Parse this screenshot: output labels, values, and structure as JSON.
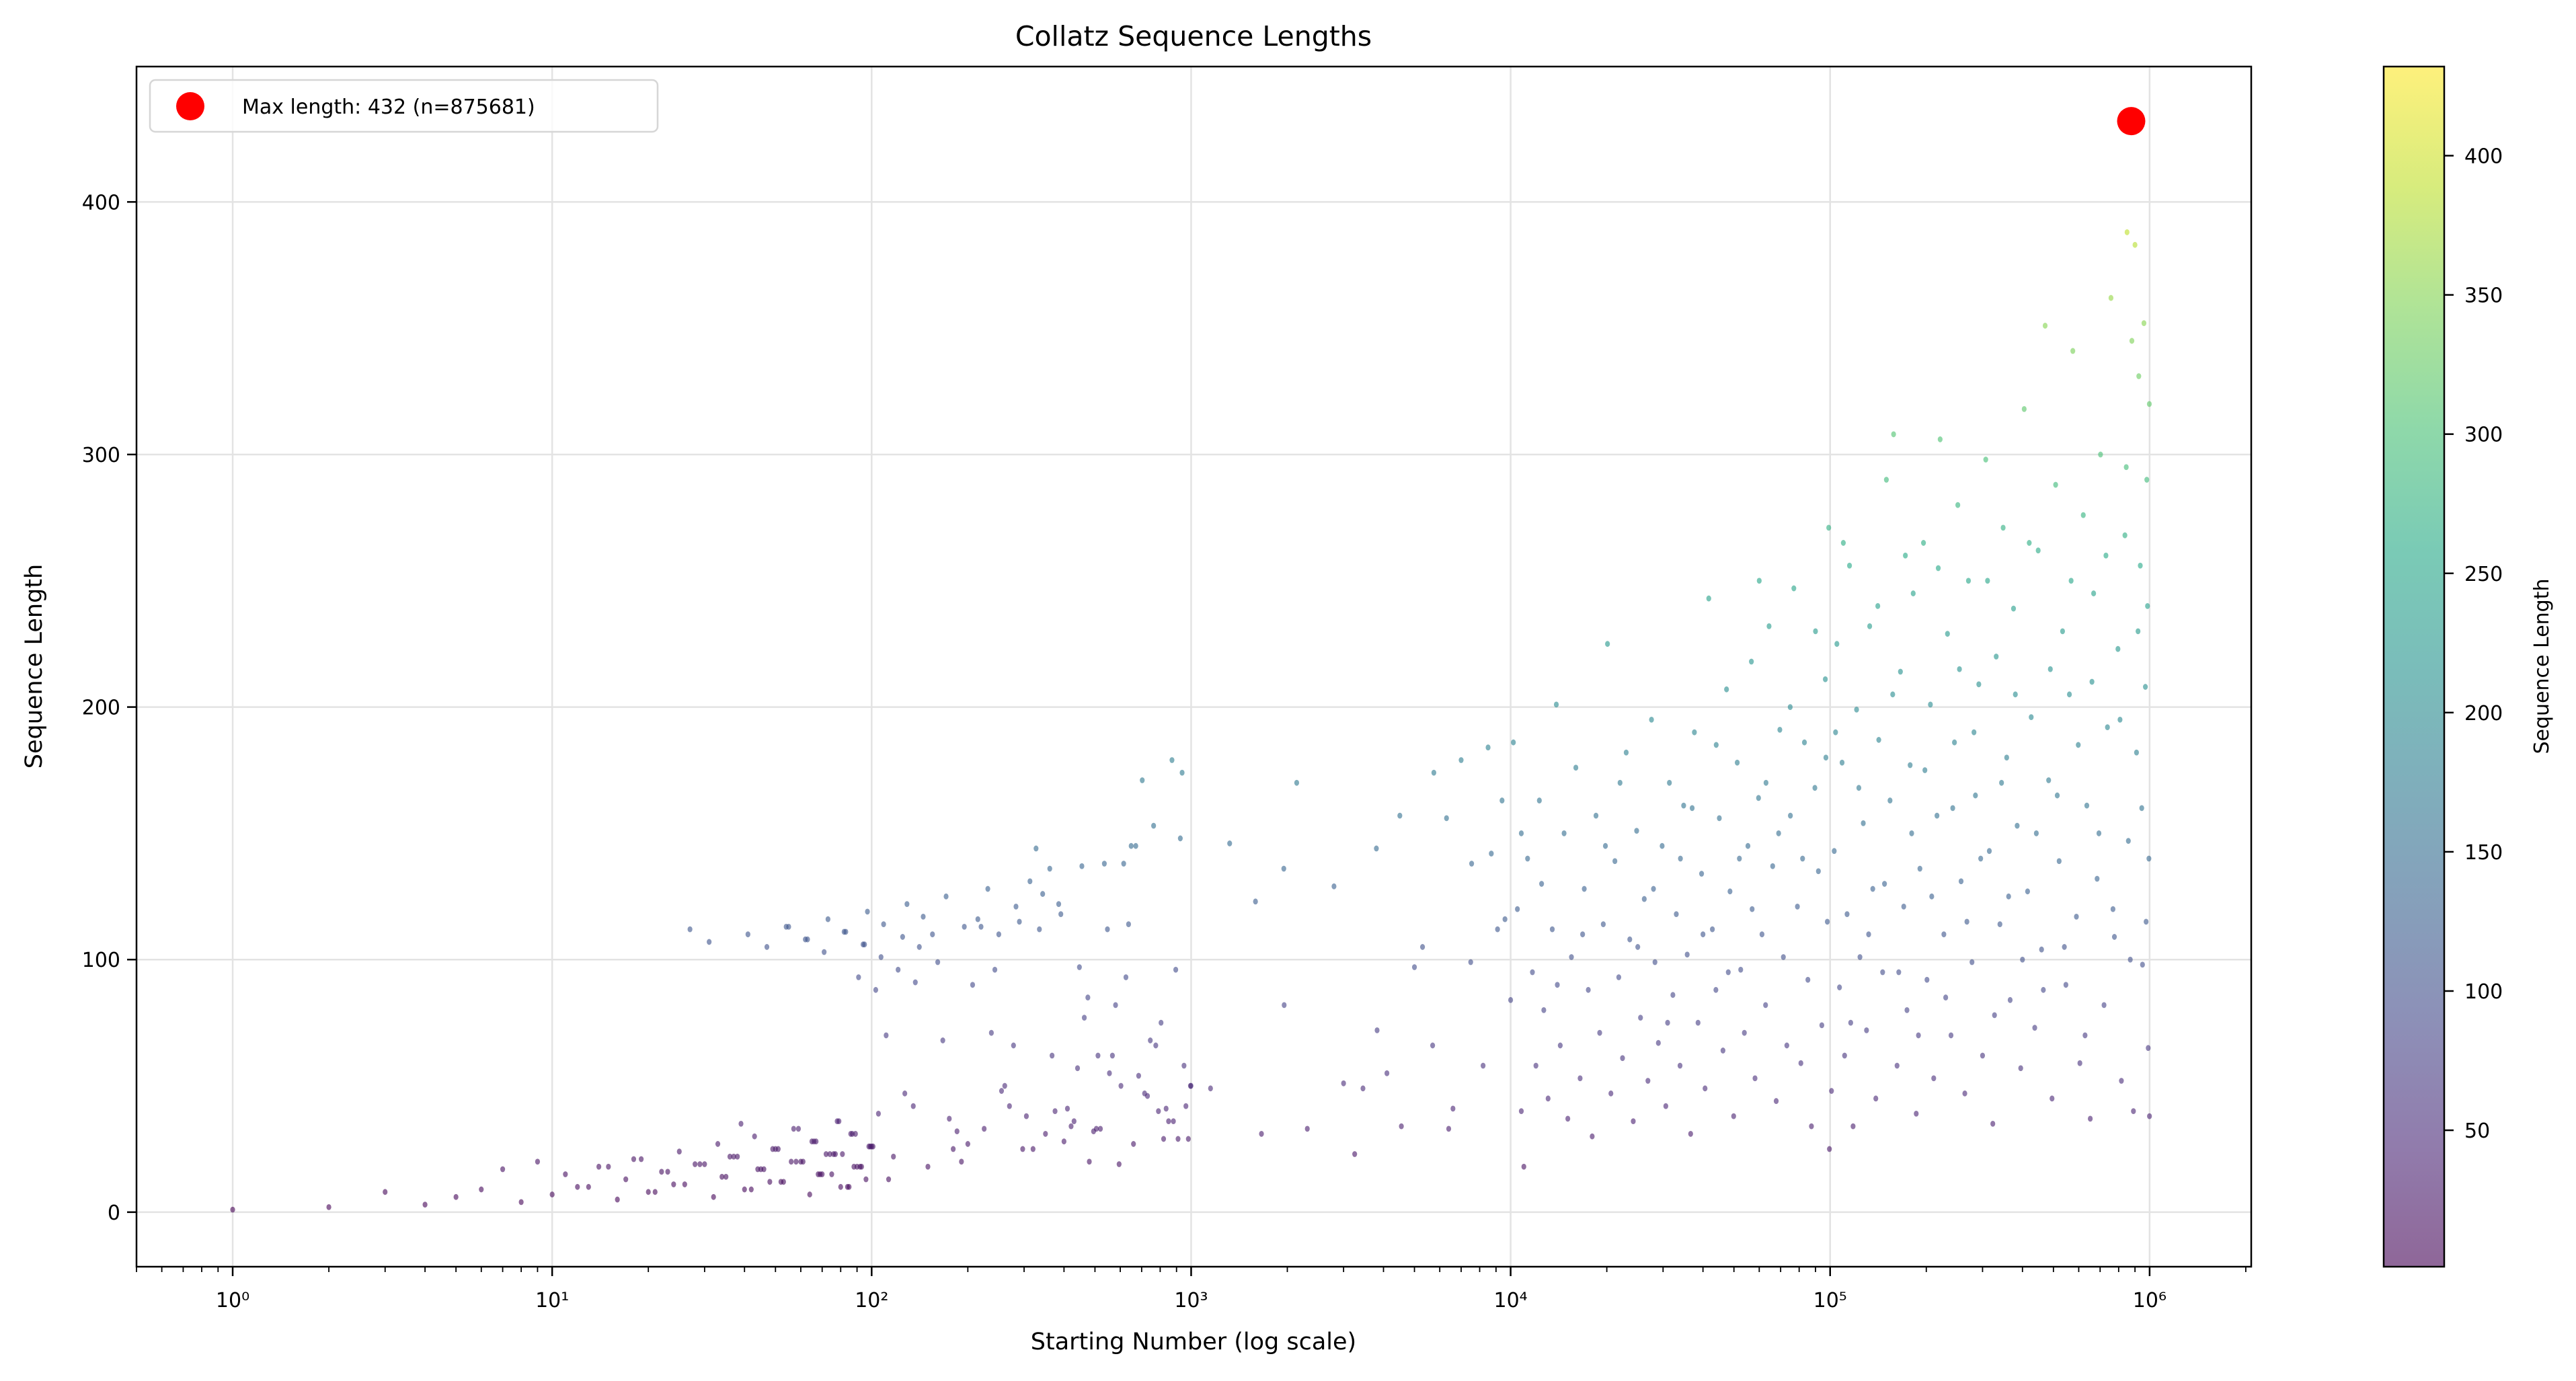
{
  "chart_data": {
    "type": "scatter",
    "title": "Collatz Sequence Lengths",
    "xlabel": "Starting Number (log scale)",
    "ylabel": "Sequence Length",
    "x_scale": "log",
    "xlim": [
      0.5,
      2080000.0
    ],
    "ylim": [
      -21.6,
      453.6
    ],
    "x_ticks": [
      1,
      10,
      100,
      1000,
      10000,
      100000,
      1000000
    ],
    "x_tick_labels": [
      "10⁰",
      "10¹",
      "10²",
      "10³",
      "10⁴",
      "10⁵",
      "10⁶"
    ],
    "y_ticks": [
      0,
      100,
      200,
      300,
      400
    ],
    "y_tick_labels": [
      "0",
      "100",
      "200",
      "300",
      "400"
    ],
    "grid": true,
    "colormap": "viridis",
    "alpha": 0.6,
    "colorbar": {
      "label": "Sequence Length",
      "range": [
        1,
        432
      ],
      "ticks": [
        50,
        100,
        150,
        200,
        250,
        300,
        350,
        400
      ],
      "tick_labels": [
        "50",
        "100",
        "150",
        "200",
        "250",
        "300",
        "350",
        "400"
      ]
    },
    "highlight": {
      "label": "Max length: 432 (n=875681)",
      "x": 875681,
      "y": 432,
      "color": "#ff0000"
    },
    "legend_position": "upper-left",
    "points": {
      "x": [
        1,
        2,
        3,
        4,
        5,
        6,
        7,
        8,
        9,
        10,
        11,
        12,
        13,
        14,
        15,
        16,
        17,
        18,
        19,
        20,
        21,
        22,
        23,
        24,
        25,
        26,
        27,
        28,
        29,
        30,
        31,
        32,
        33,
        34,
        35,
        36,
        37,
        38,
        39,
        40,
        41,
        42,
        43,
        44,
        45,
        46,
        47,
        48,
        49,
        50,
        51,
        52,
        53,
        54,
        55,
        56,
        57,
        58,
        59,
        60,
        61,
        62,
        63,
        64,
        65,
        66,
        67,
        68,
        69,
        70,
        71,
        72,
        73,
        74,
        75,
        76,
        77,
        78,
        79,
        80,
        81,
        82,
        83,
        84,
        85,
        86,
        87,
        88,
        89,
        90,
        91,
        92,
        93,
        94,
        95,
        96,
        97,
        98,
        99,
        100,
        101,
        103,
        105,
        107,
        109,
        111,
        113,
        117,
        121,
        125,
        127,
        129,
        135,
        137,
        141,
        145,
        150,
        155,
        161,
        167,
        171,
        175,
        180,
        185,
        191,
        195,
        200,
        207,
        215,
        220,
        225,
        231,
        237,
        243,
        250,
        255,
        261,
        270,
        278,
        283,
        290,
        297,
        305,
        313,
        320,
        327,
        335,
        343,
        350,
        361,
        367,
        375,
        385,
        391,
        400,
        410,
        421,
        430,
        441,
        447,
        455,
        463,
        475,
        480,
        495,
        505,
        511,
        520,
        535,
        547,
        555,
        567,
        580,
        595,
        603,
        615,
        625,
        637,
        649,
        660,
        671,
        685,
        703,
        715,
        730,
        745,
        763,
        775,
        790,
        805,
        820,
        835,
        850,
        871,
        880,
        895,
        910,
        925,
        937,
        950,
        963,
        980,
        995,
        999,
        1150,
        1320,
        1590,
        1660,
        1950,
        1955,
        2140,
        2310,
        2800,
        3000,
        3250,
        3450,
        3800,
        3820,
        4100,
        4500,
        4550,
        5000,
        5300,
        5700,
        5750,
        6300,
        6400,
        6600,
        7000,
        7500,
        7550,
        8200,
        8500,
        8700,
        9100,
        9400,
        9600,
        10000,
        10200,
        10500,
        10800,
        11000,
        11300,
        11700,
        12000,
        12300,
        12700,
        13100,
        13500,
        13900,
        14300,
        14700,
        15100,
        15500,
        16000,
        16500,
        17000,
        17500,
        18000,
        18500,
        19000,
        19500,
        20100,
        20600,
        21200,
        21800,
        22400,
        23000,
        23600,
        24200,
        24800,
        25500,
        26200,
        26900,
        27600,
        28300,
        29000,
        29800,
        30600,
        31400,
        32200,
        33000,
        33900,
        34800,
        35700,
        36600,
        37600,
        38600,
        39600,
        40600,
        41700,
        42800,
        43900,
        45000,
        46200,
        47400,
        48600,
        49900,
        51200,
        52500,
        53900,
        55300,
        56700,
        58200,
        59700,
        61200,
        62800,
        64400,
        66100,
        67800,
        69600,
        71400,
        73200,
        75100,
        77000,
        79000,
        81000,
        83100,
        85200,
        87400,
        89600,
        91900,
        94200,
        96600,
        99000,
        99500,
        98000,
        60000,
        10800,
        12500,
        14000,
        16800,
        19800,
        22000,
        25000,
        28000,
        31000,
        34000,
        37000,
        40000,
        44000,
        48000,
        52000,
        57000,
        63000,
        69000,
        75000,
        82000,
        90000,
        97000,
        101000,
        103000,
        105000,
        107000,
        109000,
        111000,
        113000,
        115000,
        118000,
        121000,
        124000,
        127000,
        130000,
        133000,
        136000,
        139000,
        142000,
        146000,
        150000,
        154000,
        158000,
        162000,
        166000,
        170000,
        174000,
        178000,
        182000,
        186000,
        191000,
        196000,
        201000,
        206000,
        211000,
        216000,
        221000,
        227000,
        233000,
        239000,
        245000,
        251000,
        257000,
        264000,
        271000,
        278000,
        285000,
        292000,
        300000,
        307000,
        315000,
        323000,
        331000,
        340000,
        348000,
        357000,
        366000,
        375000,
        385000,
        395000,
        405000,
        415000,
        426000,
        437000,
        448000,
        459000,
        471000,
        483000,
        495000,
        508000,
        521000,
        534000,
        547000,
        561000,
        575000,
        590000,
        605000,
        620000,
        636000,
        652000,
        668000,
        685000,
        702000,
        720000,
        738000,
        757000,
        776000,
        796000,
        816000,
        837000,
        850000,
        858000,
        880000,
        890000,
        900000,
        910000,
        925000,
        935000,
        950000,
        960000,
        970000,
        980000,
        990000,
        995000,
        998000,
        999000,
        104000,
        110000,
        116000,
        123000,
        132000,
        141000,
        148000,
        157000,
        164000,
        172000,
        180000,
        189000,
        198000,
        208000,
        218000,
        230000,
        242000,
        254000,
        268000,
        282000,
        296000,
        311000,
        327000,
        344000,
        362000,
        380000,
        400000,
        420000,
        442000,
        465000,
        489000,
        514000,
        541000,
        568000,
        598000,
        628000,
        660000,
        694000,
        730000,
        768000,
        808000,
        845000,
        870000,
        920000,
        945000,
        975000,
        985000,
        875681
      ],
      "y": [
        1,
        2,
        8,
        3,
        6,
        9,
        17,
        4,
        20,
        7,
        15,
        10,
        10,
        18,
        18,
        5,
        13,
        21,
        21,
        8,
        8,
        16,
        16,
        11,
        24,
        11,
        112,
        19,
        19,
        19,
        107,
        6,
        27,
        14,
        14,
        22,
        22,
        22,
        35,
        9,
        110,
        9,
        30,
        17,
        17,
        17,
        105,
        12,
        25,
        25,
        25,
        12,
        12,
        113,
        113,
        20,
        33,
        20,
        33,
        20,
        20,
        108,
        108,
        7,
        28,
        28,
        28,
        15,
        15,
        15,
        103,
        23,
        116,
        23,
        15,
        23,
        23,
        36,
        36,
        10,
        23,
        111,
        111,
        10,
        10,
        31,
        31,
        18,
        31,
        18,
        93,
        18,
        18,
        106,
        106,
        13,
        119,
        26,
        26,
        26,
        26,
        88,
        39,
        101,
        114,
        70,
        13,
        22,
        96,
        109,
        47,
        122,
        42,
        91,
        105,
        117,
        18,
        110,
        99,
        68,
        125,
        37,
        25,
        32,
        20,
        113,
        27,
        90,
        116,
        113,
        33,
        128,
        71,
        96,
        110,
        48,
        50,
        42,
        66,
        121,
        115,
        25,
        38,
        131,
        25,
        144,
        112,
        126,
        31,
        136,
        62,
        40,
        122,
        118,
        28,
        41,
        34,
        36,
        57,
        97,
        137,
        77,
        85,
        20,
        32,
        33,
        62,
        33,
        138,
        112,
        55,
        62,
        82,
        19,
        50,
        138,
        93,
        114,
        145,
        27,
        145,
        54,
        171,
        47,
        46,
        68,
        153,
        66,
        40,
        75,
        29,
        41,
        36,
        179,
        36,
        96,
        29,
        148,
        174,
        58,
        42,
        29,
        50,
        50,
        49,
        146,
        123,
        31,
        136,
        82,
        170,
        33,
        129,
        51,
        23,
        49,
        144,
        72,
        55,
        157,
        34,
        97,
        105,
        66,
        174,
        156,
        33,
        41,
        179,
        99,
        138,
        58,
        184,
        142,
        112,
        163,
        116,
        84,
        186,
        120,
        40,
        18,
        140,
        95,
        58,
        163,
        80,
        45,
        112,
        201,
        66,
        150,
        37,
        101,
        176,
        53,
        128,
        88,
        30,
        157,
        71,
        114,
        225,
        47,
        139,
        93,
        61,
        182,
        108,
        36,
        151,
        77,
        124,
        52,
        195,
        99,
        67,
        145,
        42,
        170,
        86,
        118,
        58,
        161,
        102,
        31,
        190,
        75,
        134,
        49,
        243,
        112,
        88,
        156,
        64,
        207,
        127,
        38,
        178,
        96,
        71,
        145,
        218,
        53,
        164,
        110,
        82,
        232,
        137,
        44,
        191,
        101,
        66,
        157,
        247,
        121,
        59,
        186,
        92,
        34,
        168,
        135,
        74,
        211,
        271,
        25,
        115,
        250,
        150,
        130,
        90,
        110,
        145,
        170,
        105,
        128,
        75,
        140,
        160,
        110,
        185,
        95,
        140,
        120,
        170,
        150,
        200,
        140,
        230,
        180,
        48,
        143,
        225,
        89,
        178,
        62,
        118,
        256,
        34,
        199,
        101,
        154,
        72,
        232,
        128,
        45,
        187,
        95,
        290,
        163,
        308,
        58,
        214,
        121,
        80,
        177,
        245,
        39,
        136,
        265,
        92,
        201,
        53,
        157,
        306,
        110,
        229,
        70,
        186,
        280,
        131,
        47,
        250,
        99,
        165,
        209,
        62,
        298,
        143,
        35,
        220,
        114,
        271,
        180,
        84,
        239,
        153,
        57,
        318,
        127,
        196,
        73,
        262,
        104,
        351,
        171,
        45,
        288,
        139,
        230,
        90,
        205,
        341,
        117,
        59,
        276,
        161,
        37,
        245,
        132,
        300,
        82,
        192,
        362,
        109,
        223,
        52,
        268,
        388,
        147,
        345,
        40,
        383,
        182,
        331,
        256,
        98,
        352,
        208,
        290,
        65,
        140,
        320,
        38,
        190,
        265,
        75,
        168,
        110,
        240,
        130,
        205,
        95,
        260,
        150,
        70,
        175,
        125,
        255,
        85,
        160,
        215,
        115,
        190,
        140,
        250,
        78,
        170,
        125,
        205,
        100,
        265,
        150,
        88,
        215,
        165,
        105,
        250,
        185,
        70,
        210,
        150,
        260,
        120,
        195,
        295,
        100,
        230,
        160,
        115,
        240,
        432
      ]
    }
  }
}
